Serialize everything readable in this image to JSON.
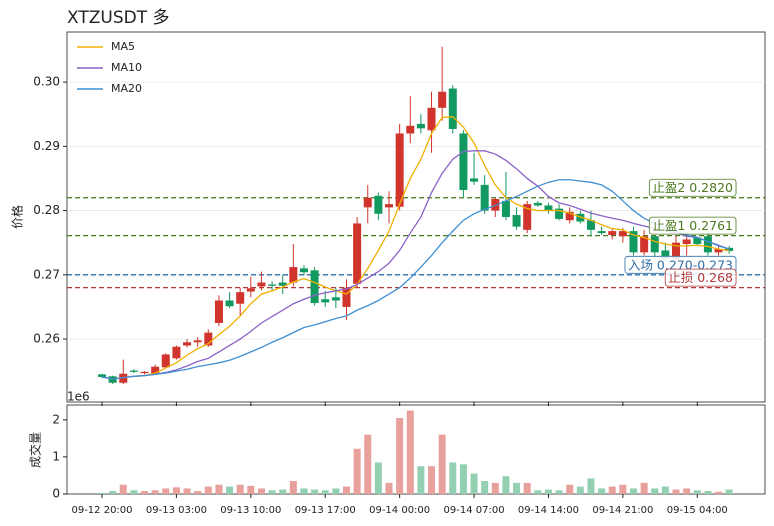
{
  "chart_data": [
    {
      "type": "candlestick",
      "title": "XTZUSDT 多",
      "y_label": "价格",
      "ylim": [
        0.2502,
        0.3078
      ],
      "yticks": [
        0.26,
        0.27,
        0.28,
        0.29,
        {
          "value": 0.3,
          "label": "0.30"
        }
      ],
      "grid": true,
      "up_color": "#d0342c",
      "down_color": "#12995f",
      "open": [
        0.2545,
        0.2542,
        0.2532,
        0.2551,
        0.2547,
        0.2546,
        0.2556,
        0.257,
        0.259,
        0.2595,
        0.259,
        0.2625,
        0.266,
        0.2655,
        0.2674,
        0.2682,
        0.2685,
        0.2688,
        0.2688,
        0.271,
        0.2707,
        0.2662,
        0.2665,
        0.265,
        0.2686,
        0.2805,
        0.2823,
        0.2805,
        0.2806,
        0.292,
        0.2935,
        0.2925,
        0.296,
        0.299,
        0.292,
        0.285,
        0.284,
        0.28,
        0.2815,
        0.2793,
        0.277,
        0.2812,
        0.2808,
        0.2803,
        0.2785,
        0.2795,
        0.2785,
        0.2768,
        0.2762,
        0.276,
        0.2768,
        0.2735,
        0.276,
        0.2738,
        0.2725,
        0.2748,
        0.2758,
        0.276,
        0.2735,
        0.2742
      ],
      "high": [
        0.2546,
        0.2543,
        0.2568,
        0.2553,
        0.255,
        0.256,
        0.2578,
        0.259,
        0.26,
        0.2603,
        0.2615,
        0.2668,
        0.2673,
        0.268,
        0.2697,
        0.2705,
        0.269,
        0.27,
        0.2748,
        0.2715,
        0.2712,
        0.2675,
        0.268,
        0.2693,
        0.279,
        0.284,
        0.2828,
        0.283,
        0.2935,
        0.2978,
        0.295,
        0.2985,
        0.3055,
        0.2995,
        0.2925,
        0.289,
        0.2855,
        0.282,
        0.286,
        0.2805,
        0.2815,
        0.2815,
        0.2812,
        0.281,
        0.2805,
        0.28,
        0.28,
        0.2775,
        0.2772,
        0.2773,
        0.2775,
        0.277,
        0.2762,
        0.275,
        0.276,
        0.276,
        0.276,
        0.2765,
        0.2745,
        0.2745
      ],
      "low": [
        0.2539,
        0.253,
        0.253,
        0.2547,
        0.2545,
        0.2545,
        0.2555,
        0.2568,
        0.2587,
        0.2588,
        0.2588,
        0.262,
        0.2648,
        0.2635,
        0.2665,
        0.2676,
        0.2675,
        0.267,
        0.2682,
        0.27,
        0.2652,
        0.265,
        0.2648,
        0.263,
        0.268,
        0.278,
        0.2785,
        0.278,
        0.28,
        0.2905,
        0.292,
        0.289,
        0.294,
        0.292,
        0.282,
        0.284,
        0.2795,
        0.279,
        0.2785,
        0.277,
        0.2765,
        0.2806,
        0.2795,
        0.2785,
        0.278,
        0.278,
        0.276,
        0.2762,
        0.2755,
        0.275,
        0.273,
        0.273,
        0.2725,
        0.272,
        0.272,
        0.273,
        0.2745,
        0.273,
        0.273,
        0.2733
      ],
      "close": [
        0.2541,
        0.2532,
        0.2546,
        0.2549,
        0.2549,
        0.2557,
        0.2576,
        0.2588,
        0.2595,
        0.2598,
        0.261,
        0.266,
        0.2651,
        0.2673,
        0.2679,
        0.2688,
        0.2683,
        0.2683,
        0.2712,
        0.2704,
        0.2656,
        0.2657,
        0.266,
        0.268,
        0.278,
        0.282,
        0.2795,
        0.281,
        0.292,
        0.2932,
        0.2928,
        0.296,
        0.2985,
        0.2927,
        0.2832,
        0.2845,
        0.28,
        0.2818,
        0.279,
        0.2775,
        0.281,
        0.2808,
        0.28,
        0.2787,
        0.2798,
        0.2783,
        0.277,
        0.2765,
        0.2768,
        0.2768,
        0.2735,
        0.276,
        0.2735,
        0.2725,
        0.275,
        0.2755,
        0.2748,
        0.2735,
        0.274,
        0.2737
      ],
      "series": [
        {
          "name": "MA5",
          "color": "#f0b000",
          "values": [
            0.2541,
            0.2538,
            0.254,
            0.2542,
            0.2543,
            0.2547,
            0.2555,
            0.2563,
            0.2575,
            0.2585,
            0.2593,
            0.2607,
            0.262,
            0.2636,
            0.2655,
            0.267,
            0.2675,
            0.2681,
            0.2689,
            0.2694,
            0.2688,
            0.2681,
            0.2675,
            0.267,
            0.2685,
            0.271,
            0.2738,
            0.2768,
            0.281,
            0.285,
            0.288,
            0.292,
            0.2945,
            0.2946,
            0.293,
            0.2905,
            0.287,
            0.284,
            0.282,
            0.281,
            0.2803,
            0.28,
            0.28,
            0.28,
            0.2796,
            0.279,
            0.2785,
            0.2778,
            0.2772,
            0.277,
            0.2762,
            0.2758,
            0.2752,
            0.2748,
            0.2745,
            0.2745,
            0.2746,
            0.2744,
            0.274,
            0.2738
          ]
        },
        {
          "name": "MA10",
          "color": "#8a62c8",
          "values": [
            0.2541,
            0.2538,
            0.254,
            0.2542,
            0.2543,
            0.2545,
            0.2548,
            0.2552,
            0.2558,
            0.2565,
            0.257,
            0.258,
            0.259,
            0.26,
            0.2612,
            0.2625,
            0.2635,
            0.2645,
            0.2655,
            0.2662,
            0.2668,
            0.2672,
            0.2675,
            0.2678,
            0.2685,
            0.2695,
            0.2705,
            0.2718,
            0.2738,
            0.2765,
            0.279,
            0.2828,
            0.2858,
            0.288,
            0.2892,
            0.2893,
            0.2893,
            0.2888,
            0.2878,
            0.2865,
            0.285,
            0.2838,
            0.2822,
            0.2812,
            0.2808,
            0.2802,
            0.2796,
            0.2792,
            0.2788,
            0.2785,
            0.278,
            0.2776,
            0.2772,
            0.2768,
            0.2765,
            0.276,
            0.2758,
            0.2752,
            0.2746,
            0.274
          ]
        },
        {
          "name": "MA20",
          "color": "#3f8fd2",
          "values": [
            0.2541,
            0.2538,
            0.254,
            0.2542,
            0.2543,
            0.2545,
            0.2547,
            0.255,
            0.2553,
            0.2557,
            0.256,
            0.2563,
            0.2567,
            0.2573,
            0.258,
            0.2587,
            0.2595,
            0.2602,
            0.261,
            0.2618,
            0.2622,
            0.2627,
            0.2632,
            0.2636,
            0.2645,
            0.2652,
            0.266,
            0.267,
            0.268,
            0.2695,
            0.2712,
            0.273,
            0.275,
            0.2768,
            0.2785,
            0.2795,
            0.2802,
            0.2808,
            0.2815,
            0.2822,
            0.283,
            0.2838,
            0.2844,
            0.2848,
            0.2848,
            0.2846,
            0.2844,
            0.284,
            0.283,
            0.2815,
            0.28,
            0.2788,
            0.278,
            0.2772,
            0.2768,
            0.2762,
            0.2758,
            0.2752,
            0.2745,
            0.274
          ]
        }
      ],
      "legend": "upper left",
      "levels": [
        {
          "label": "止盈2 0.2820",
          "value": 0.282,
          "color": "#4a7a1e"
        },
        {
          "label": "止盈1 0.2761",
          "value": 0.2761,
          "color": "#4a7a1e"
        },
        {
          "label": "入场 0.270-0.273",
          "value": 0.27,
          "color": "#2f6fa8"
        },
        {
          "label": "止损 0.268",
          "value": 0.268,
          "color": "#b23a3a"
        }
      ]
    },
    {
      "type": "bar",
      "y_label": "成交量",
      "offset_label": "1e6",
      "ylim": [
        0,
        2400000
      ],
      "yticks": [
        0,
        {
          "value": 1000000,
          "label": "1"
        },
        {
          "value": 2000000,
          "label": "2"
        }
      ],
      "up_color": "#e8a09c",
      "down_color": "#93d0b2",
      "categories": [
        "09-12 20:00",
        null,
        null,
        null,
        null,
        null,
        null,
        "09-13 03:00",
        null,
        null,
        null,
        null,
        null,
        null,
        "09-13 10:00",
        null,
        null,
        null,
        null,
        null,
        null,
        "09-13 17:00",
        null,
        null,
        null,
        null,
        null,
        null,
        "09-14 00:00",
        null,
        null,
        null,
        null,
        null,
        null,
        "09-14 07:00",
        null,
        null,
        null,
        null,
        null,
        null,
        "09-14 14:00",
        null,
        null,
        null,
        null,
        null,
        null,
        "09-14 21:00",
        null,
        null,
        null,
        null,
        null,
        null,
        "09-15 04:00",
        null,
        null,
        null
      ],
      "values": [
        30000,
        80000,
        250000,
        100000,
        80000,
        100000,
        150000,
        180000,
        150000,
        80000,
        200000,
        250000,
        200000,
        250000,
        220000,
        150000,
        100000,
        120000,
        350000,
        150000,
        120000,
        100000,
        150000,
        200000,
        1220000,
        1600000,
        850000,
        300000,
        2050000,
        2250000,
        750000,
        750000,
        1600000,
        850000,
        800000,
        550000,
        350000,
        300000,
        480000,
        300000,
        300000,
        100000,
        120000,
        100000,
        250000,
        200000,
        420000,
        150000,
        200000,
        250000,
        150000,
        300000,
        150000,
        200000,
        120000,
        150000,
        100000,
        80000,
        60000,
        120000
      ]
    }
  ]
}
